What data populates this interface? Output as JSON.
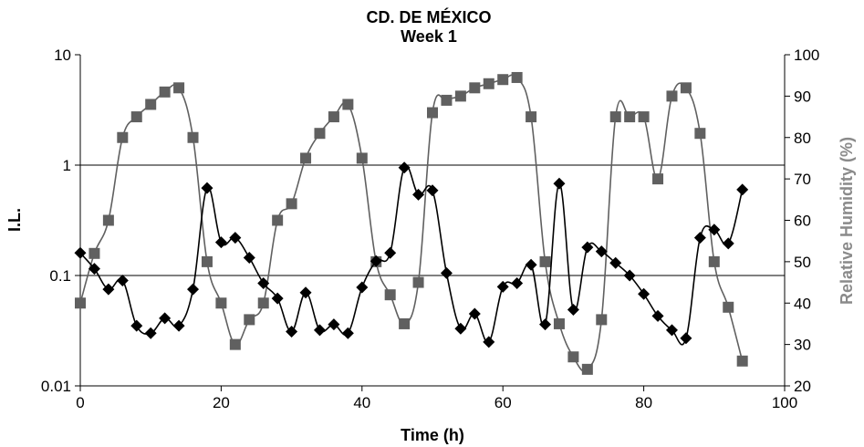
{
  "chart_data": {
    "type": "line",
    "title": "CD. DE MÉXICO",
    "subtitle": "Week 1",
    "xlabel": "Time (h)",
    "ylabel": "I.L.",
    "y2label": "Relative Humidity (%)",
    "xlim": [
      0,
      100
    ],
    "ylim": [
      0.01,
      10
    ],
    "yscale": "log",
    "y2lim": [
      20,
      100
    ],
    "x_ticks": [
      "0",
      "20",
      "40",
      "60",
      "80",
      "100"
    ],
    "y_ticks": [
      "0.01",
      "0.1",
      "1",
      "10"
    ],
    "y2_ticks": [
      "20",
      "30",
      "40",
      "50",
      "60",
      "70",
      "80",
      "90",
      "100"
    ],
    "gridlines_y": [
      0.1,
      1
    ],
    "series": [
      {
        "axis": "left",
        "marker": "diamond",
        "color": "#000000",
        "x": [
          0,
          2,
          4,
          6,
          8,
          10,
          12,
          14,
          16,
          18,
          20,
          22,
          24,
          26,
          28,
          30,
          32,
          34,
          36,
          38,
          40,
          42,
          44,
          46,
          48,
          50,
          52,
          54,
          56,
          58,
          60,
          62,
          64,
          66,
          68,
          70,
          72,
          74,
          76,
          78,
          80,
          82,
          84,
          86,
          88,
          90,
          92,
          94
        ],
        "y": [
          0.16,
          0.115,
          0.075,
          0.09,
          0.035,
          0.03,
          0.041,
          0.035,
          0.075,
          0.62,
          0.2,
          0.22,
          0.145,
          0.085,
          0.062,
          0.031,
          0.07,
          0.032,
          0.036,
          0.03,
          0.078,
          0.135,
          0.16,
          0.95,
          0.54,
          0.59,
          0.105,
          0.033,
          0.045,
          0.025,
          0.079,
          0.085,
          0.125,
          0.036,
          0.68,
          0.049,
          0.18,
          0.165,
          0.13,
          0.1,
          0.068,
          0.043,
          0.032,
          0.027,
          0.22,
          0.26,
          0.195,
          0.6
        ]
      },
      {
        "axis": "right",
        "marker": "square",
        "color": "#606060",
        "x": [
          0,
          2,
          4,
          6,
          8,
          10,
          12,
          14,
          16,
          18,
          20,
          22,
          24,
          26,
          28,
          30,
          32,
          34,
          36,
          38,
          40,
          42,
          44,
          46,
          48,
          50,
          52,
          54,
          56,
          58,
          60,
          62,
          64,
          66,
          68,
          70,
          72,
          74,
          76,
          78,
          80,
          82,
          84,
          86,
          88,
          90,
          92,
          94
        ],
        "y": [
          40,
          52,
          60,
          80,
          85,
          88,
          91,
          92,
          80,
          50,
          40,
          30,
          36,
          40,
          60,
          64,
          75,
          81,
          85,
          88,
          75,
          50,
          42,
          35,
          45,
          86,
          89,
          90,
          92,
          93,
          94,
          94.5,
          85,
          50,
          35,
          27,
          24,
          36,
          85,
          85,
          85,
          70,
          90,
          92,
          81,
          50,
          39,
          26
        ]
      }
    ]
  }
}
